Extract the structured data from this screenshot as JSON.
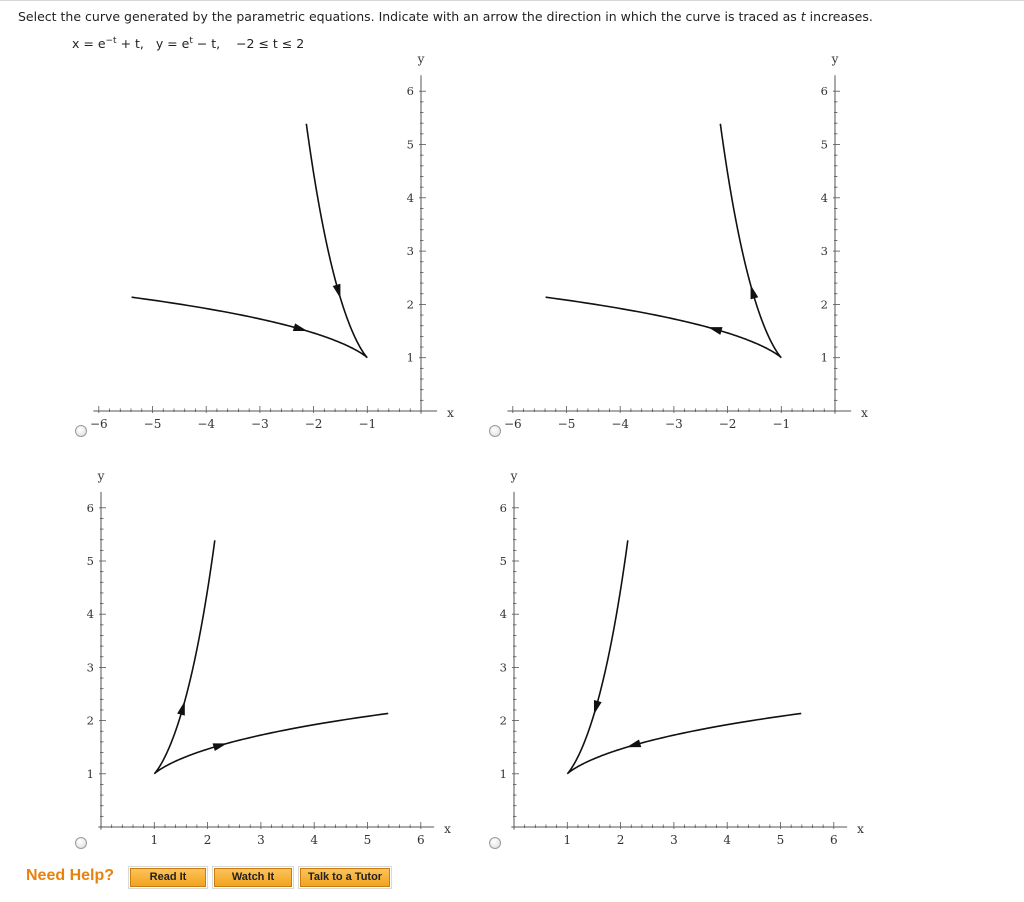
{
  "question": {
    "text_before": "Select the curve generated by the parametric equations. Indicate with an arrow the direction in which the curve is traced as ",
    "t_var": "t",
    "text_after": " increases."
  },
  "equations": {
    "x_eq_prefix": "x = e",
    "x_exp": "−t",
    "x_eq_suffix": " + t,",
    "y_eq_prefix": "y = e",
    "y_exp": "t",
    "y_eq_suffix": " − t,",
    "t_range": "−2 ≤ t ≤ 2"
  },
  "graphs": [
    {
      "id": "A",
      "axis_labels": {
        "x": "x",
        "y": "y"
      },
      "x_ticks": [
        "−6",
        "−5",
        "−4",
        "−3",
        "−2",
        "−1"
      ],
      "y_ticks": [
        "1",
        "2",
        "3",
        "4",
        "5",
        "6"
      ],
      "arrows": "toward-cusp"
    },
    {
      "id": "B",
      "axis_labels": {
        "x": "x",
        "y": "y"
      },
      "x_ticks": [
        "−6",
        "−5",
        "−4",
        "−3",
        "−2",
        "−1"
      ],
      "y_ticks": [
        "1",
        "2",
        "3",
        "4",
        "5",
        "6"
      ],
      "arrows": "away-from-cusp"
    },
    {
      "id": "C",
      "axis_labels": {
        "x": "x",
        "y": "y"
      },
      "x_ticks": [
        "1",
        "2",
        "3",
        "4",
        "5",
        "6"
      ],
      "y_ticks": [
        "1",
        "2",
        "3",
        "4",
        "5",
        "6"
      ],
      "arrows": "away-from-cusp"
    },
    {
      "id": "D",
      "axis_labels": {
        "x": "x",
        "y": "y"
      },
      "x_ticks": [
        "1",
        "2",
        "3",
        "4",
        "5",
        "6"
      ],
      "y_ticks": [
        "1",
        "2",
        "3",
        "4",
        "5",
        "6"
      ],
      "arrows": "toward-cusp"
    }
  ],
  "help": {
    "label": "Need Help?",
    "read_it": "Read It",
    "watch_it": "Watch It",
    "talk_to_tutor": "Talk to a Tutor"
  }
}
